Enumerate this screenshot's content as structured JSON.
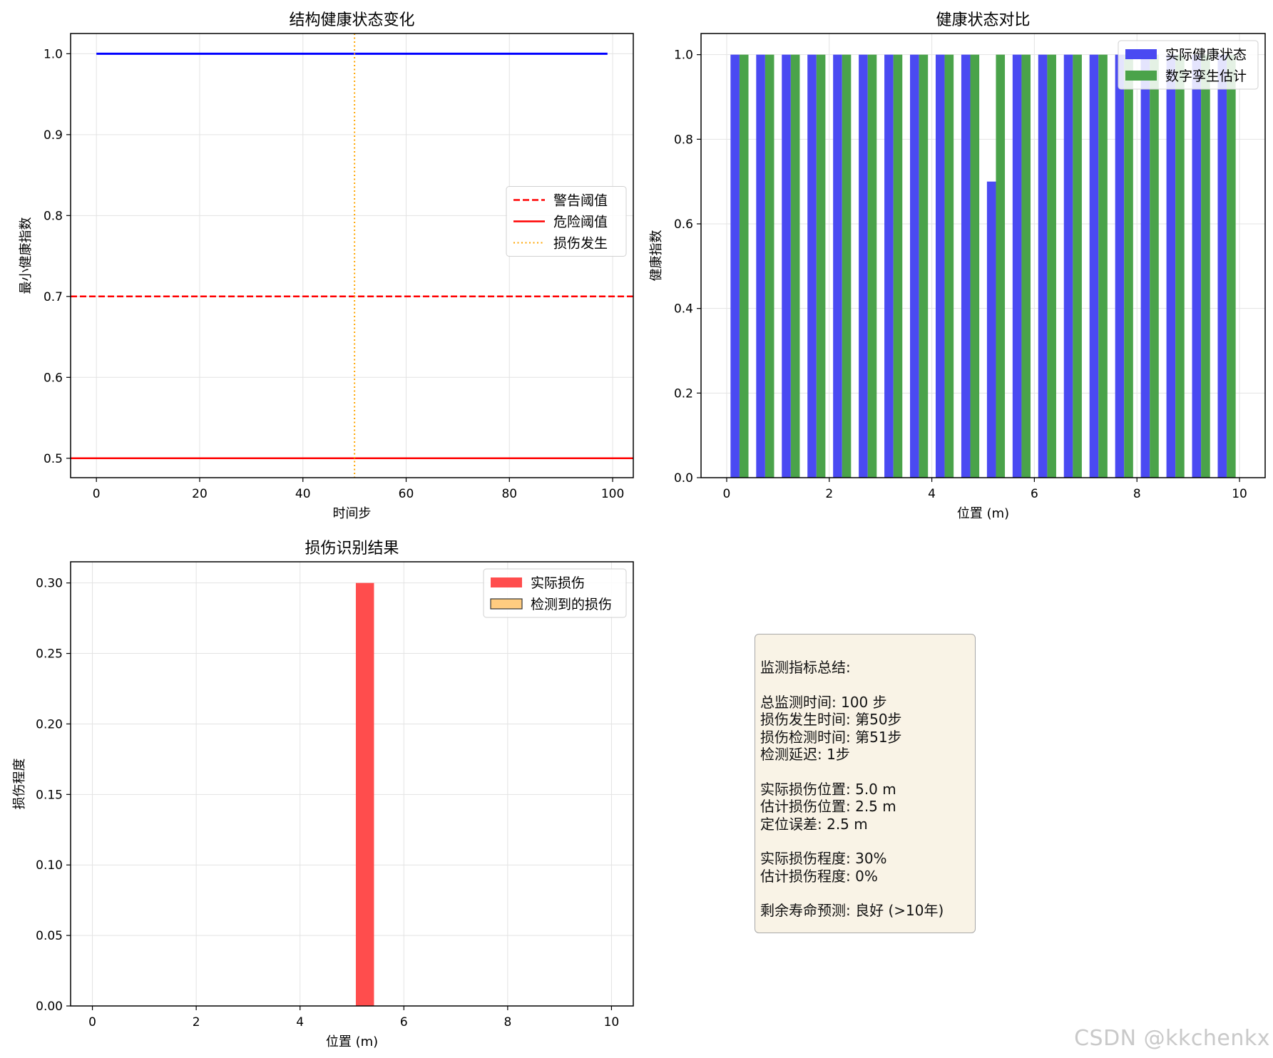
{
  "watermark": "CSDN @kkchenkx",
  "summary": {
    "lines": [
      "监测指标总结:",
      "",
      "总监测时间: 100 步",
      "损伤发生时间: 第50步",
      "损伤检测时间: 第51步",
      "检测延迟: 1步",
      "",
      "实际损伤位置: 5.0 m",
      "估计损伤位置: 2.5 m",
      "定位误差: 2.5 m",
      "",
      "实际损伤程度: 30%",
      "估计损伤程度: 0%",
      "",
      "剩余寿命预测: 良好 (>10年)"
    ]
  },
  "chart_data": [
    {
      "type": "line",
      "title": "结构健康状态变化",
      "xlabel": "时间步",
      "ylabel": "最小健康指数",
      "xlim": [
        -5,
        104
      ],
      "ylim": [
        0.476,
        1.025
      ],
      "xticks": [
        0,
        20,
        40,
        60,
        80,
        100
      ],
      "xtick_labels": [
        "0",
        "20",
        "40",
        "60",
        "80",
        "100"
      ],
      "yticks": [
        0.5,
        0.6,
        0.7,
        0.8,
        0.9,
        1.0
      ],
      "ytick_labels": [
        "0.5",
        "0.6",
        "0.7",
        "0.8",
        "0.9",
        "1.0"
      ],
      "grid": true,
      "legend_position": "center-right",
      "series": [
        {
          "name": "",
          "color": "#0000ff",
          "style": "solid",
          "x": [
            0,
            99
          ],
          "y": [
            1.0,
            1.0
          ]
        }
      ],
      "hlines": [
        {
          "name": "警告阈值",
          "y": 0.7,
          "color": "#ff0000",
          "style": "dashed"
        },
        {
          "name": "危险阈值",
          "y": 0.5,
          "color": "#ff0000",
          "style": "solid"
        }
      ],
      "vlines": [
        {
          "name": "损伤发生",
          "x": 50,
          "color": "#ffa500",
          "style": "dotted"
        }
      ]
    },
    {
      "type": "bar",
      "title": "健康状态对比",
      "xlabel": "位置 (m)",
      "ylabel": "健康指数",
      "xlim": [
        -0.5,
        10.5
      ],
      "ylim": [
        0.0,
        1.05
      ],
      "xticks": [
        0,
        2,
        4,
        6,
        8,
        10
      ],
      "xtick_labels": [
        "0",
        "2",
        "4",
        "6",
        "8",
        "10"
      ],
      "yticks": [
        0.0,
        0.2,
        0.4,
        0.6,
        0.8,
        1.0
      ],
      "ytick_labels": [
        "0.0",
        "0.2",
        "0.4",
        "0.6",
        "0.8",
        "1.0"
      ],
      "grid": true,
      "legend_position": "top-right",
      "x": [
        0.25,
        0.75,
        1.25,
        1.75,
        2.25,
        2.75,
        3.25,
        3.75,
        4.25,
        4.75,
        5.25,
        5.75,
        6.25,
        6.75,
        7.25,
        7.75,
        8.25,
        8.75,
        9.25,
        9.75
      ],
      "bar_width": 0.175,
      "series": [
        {
          "name": "实际健康状态",
          "color": "#4a4af2",
          "values": [
            1.0,
            1.0,
            1.0,
            1.0,
            1.0,
            1.0,
            1.0,
            1.0,
            1.0,
            1.0,
            0.7,
            1.0,
            1.0,
            1.0,
            1.0,
            1.0,
            1.0,
            1.0,
            1.0,
            1.0
          ]
        },
        {
          "name": "数字孪生估计",
          "color": "#4aa34a",
          "values": [
            1.0,
            1.0,
            1.0,
            1.0,
            1.0,
            1.0,
            1.0,
            1.0,
            1.0,
            1.0,
            1.0,
            1.0,
            1.0,
            1.0,
            1.0,
            1.0,
            1.0,
            1.0,
            1.0,
            1.0
          ]
        }
      ]
    },
    {
      "type": "bar",
      "title": "损伤识别结果",
      "xlabel": "位置 (m)",
      "ylabel": "损伤程度",
      "xlim": [
        -0.42,
        10.42
      ],
      "ylim": [
        0.0,
        0.315
      ],
      "xticks": [
        0,
        2,
        4,
        6,
        8,
        10
      ],
      "xtick_labels": [
        "0",
        "2",
        "4",
        "6",
        "8",
        "10"
      ],
      "yticks": [
        0.0,
        0.05,
        0.1,
        0.15,
        0.2,
        0.25,
        0.3
      ],
      "ytick_labels": [
        "0.00",
        "0.05",
        "0.10",
        "0.15",
        "0.20",
        "0.25",
        "0.30"
      ],
      "grid": true,
      "legend_position": "top-right",
      "bar_width": 0.35,
      "series": [
        {
          "name": "实际损伤",
          "color": "#ff4d4d",
          "x": [
            5.25
          ],
          "values": [
            0.3
          ]
        },
        {
          "name": "检测到的损伤",
          "color": "#ffcc80",
          "edgecolor": "#333333",
          "x": [],
          "values": []
        }
      ]
    }
  ]
}
